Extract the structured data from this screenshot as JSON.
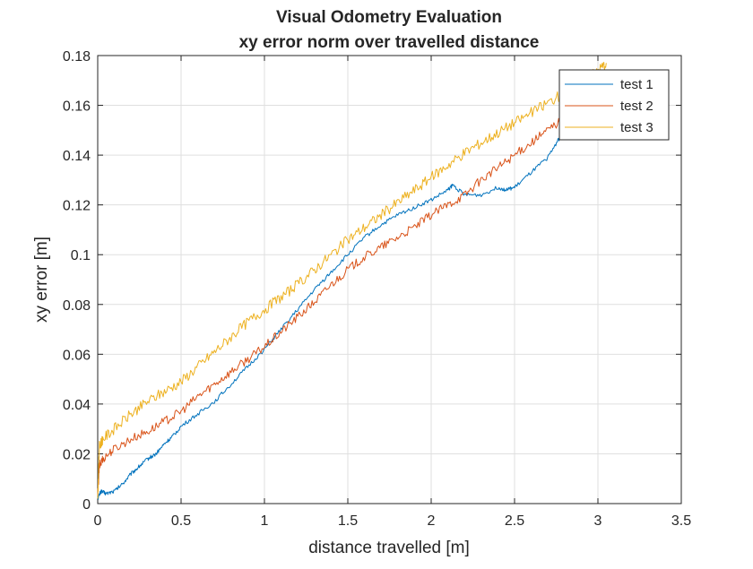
{
  "chart_data": {
    "type": "line",
    "title": "Visual Odometry Evaluation",
    "subtitle": "xy error norm over travelled distance",
    "xlabel": "distance travelled [m]",
    "ylabel": "xy error [m]",
    "xlim": [
      0,
      3.5
    ],
    "ylim": [
      0,
      0.18
    ],
    "xticks": [
      0,
      0.5,
      1,
      1.5,
      2,
      2.5,
      3,
      3.5
    ],
    "xtick_labels": [
      "0",
      "0.5",
      "1",
      "1.5",
      "2",
      "2.5",
      "3",
      "3.5"
    ],
    "yticks": [
      0,
      0.02,
      0.04,
      0.06,
      0.08,
      0.1,
      0.12,
      0.14,
      0.16,
      0.18
    ],
    "ytick_labels": [
      "0",
      "0.02",
      "0.04",
      "0.06",
      "0.08",
      "0.1",
      "0.12",
      "0.14",
      "0.16",
      "0.18"
    ],
    "grid": true,
    "legend_position": "top-right",
    "series": [
      {
        "name": "test 1",
        "color": "#0072BD",
        "x": [
          0,
          0.02,
          0.05,
          0.1,
          0.15,
          0.2,
          0.25,
          0.3,
          0.35,
          0.4,
          0.45,
          0.5,
          0.6,
          0.7,
          0.8,
          0.9,
          1.0,
          1.1,
          1.2,
          1.3,
          1.4,
          1.5,
          1.6,
          1.7,
          1.8,
          1.9,
          2.0,
          2.1,
          2.13,
          2.2,
          2.3,
          2.4,
          2.45,
          2.5,
          2.6,
          2.7,
          2.76,
          2.8
        ],
        "y": [
          0.002,
          0.005,
          0.004,
          0.005,
          0.008,
          0.012,
          0.015,
          0.018,
          0.02,
          0.024,
          0.027,
          0.031,
          0.036,
          0.041,
          0.048,
          0.055,
          0.062,
          0.07,
          0.078,
          0.086,
          0.093,
          0.1,
          0.107,
          0.112,
          0.116,
          0.119,
          0.122,
          0.126,
          0.128,
          0.124,
          0.124,
          0.127,
          0.126,
          0.127,
          0.133,
          0.139,
          0.146,
          0.149
        ],
        "noise": 0.0008
      },
      {
        "name": "test 2",
        "color": "#D95319",
        "x": [
          0,
          0.01,
          0.03,
          0.1,
          0.2,
          0.3,
          0.4,
          0.5,
          0.6,
          0.7,
          0.8,
          0.9,
          1.0,
          1.1,
          1.2,
          1.3,
          1.4,
          1.5,
          1.6,
          1.7,
          1.8,
          1.9,
          2.0,
          2.1,
          2.2,
          2.3,
          2.4,
          2.5,
          2.6,
          2.7,
          2.8
        ],
        "y": [
          0.003,
          0.015,
          0.018,
          0.022,
          0.026,
          0.029,
          0.033,
          0.037,
          0.043,
          0.048,
          0.053,
          0.058,
          0.063,
          0.069,
          0.075,
          0.081,
          0.088,
          0.094,
          0.099,
          0.103,
          0.107,
          0.111,
          0.116,
          0.12,
          0.124,
          0.13,
          0.135,
          0.14,
          0.145,
          0.15,
          0.155
        ],
        "noise": 0.0018
      },
      {
        "name": "test 3",
        "color": "#EDB120",
        "x": [
          0,
          0.01,
          0.03,
          0.1,
          0.2,
          0.3,
          0.4,
          0.5,
          0.6,
          0.7,
          0.8,
          0.9,
          1.0,
          1.1,
          1.2,
          1.3,
          1.4,
          1.5,
          1.6,
          1.7,
          1.8,
          1.9,
          2.0,
          2.1,
          2.2,
          2.3,
          2.4,
          2.5,
          2.6,
          2.7,
          2.8,
          2.9,
          3.0,
          3.05
        ],
        "y": [
          0.002,
          0.023,
          0.026,
          0.03,
          0.036,
          0.041,
          0.045,
          0.049,
          0.055,
          0.061,
          0.067,
          0.073,
          0.078,
          0.083,
          0.088,
          0.094,
          0.1,
          0.106,
          0.111,
          0.116,
          0.121,
          0.126,
          0.131,
          0.136,
          0.141,
          0.145,
          0.149,
          0.153,
          0.157,
          0.161,
          0.165,
          0.169,
          0.174,
          0.177
        ],
        "noise": 0.0022
      }
    ]
  }
}
